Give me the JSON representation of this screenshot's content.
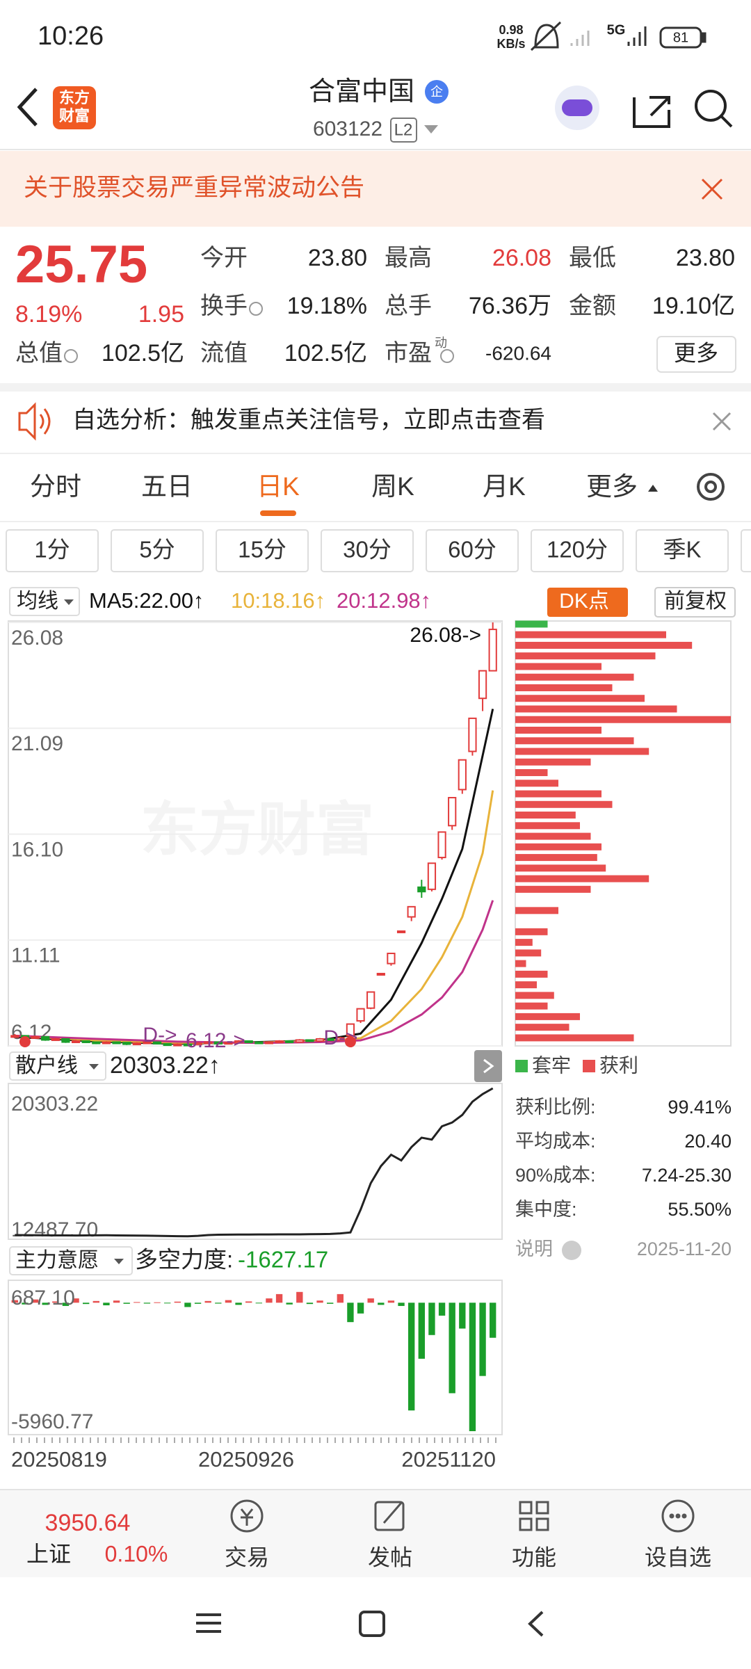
{
  "status_bar": {
    "time": "10:26",
    "speed": "0.98",
    "speed_unit": "KB/s",
    "network": "5G",
    "battery": "81"
  },
  "header": {
    "logo": [
      "东方",
      "财富"
    ],
    "title": "合富中国",
    "badge": "企",
    "code": "603122",
    "level": "L2"
  },
  "banner": {
    "text": "关于股票交易严重异常波动公告"
  },
  "quote": {
    "price": "25.75",
    "change_pct": "8.19%",
    "change": "1.95",
    "fields": [
      {
        "label": "今开",
        "value": "23.80"
      },
      {
        "label": "最高",
        "value": "26.08",
        "color": "#e23b3b"
      },
      {
        "label": "最低",
        "value": "23.80"
      },
      {
        "label": "换手",
        "value": "19.18%",
        "info": true
      },
      {
        "label": "总手",
        "value": "76.36万"
      },
      {
        "label": "金额",
        "value": "19.10亿"
      },
      {
        "label": "总值",
        "value": "102.5亿",
        "info": true
      },
      {
        "label": "流值",
        "value": "102.5亿"
      },
      {
        "label": "市盈",
        "sup": "动",
        "value": "-620.64",
        "info": true
      }
    ],
    "more": "更多"
  },
  "notice": {
    "text": "自选分析：触发重点关注信号，立即点击查看"
  },
  "tabs": {
    "items": [
      "分时",
      "五日",
      "日K",
      "周K",
      "月K",
      "更多"
    ],
    "selected": 2
  },
  "periods": [
    "1分",
    "5分",
    "15分",
    "30分",
    "60分",
    "120分",
    "季K"
  ],
  "chart_data": [
    {
      "type": "candlestick",
      "indicator": "均线",
      "buttons": [
        "DK点",
        "前复权"
      ],
      "watermark": "东方财富",
      "ylim": [
        6.12,
        26.08
      ],
      "yticks": [
        26.08,
        21.09,
        {
          "value": 16.1,
          "label": "16.10"
        },
        11.11,
        6.12
      ],
      "grid": true,
      "up_color": "#e23b3b",
      "down_color": "#1a9e2a",
      "candles": [
        [
          6.55,
          6.68,
          6.5,
          6.6
        ],
        [
          6.6,
          6.62,
          6.45,
          6.5
        ],
        [
          6.5,
          6.6,
          6.46,
          6.55
        ],
        [
          6.55,
          6.56,
          6.36,
          6.4
        ],
        [
          6.4,
          6.5,
          6.36,
          6.45
        ],
        [
          6.45,
          6.46,
          6.26,
          6.3
        ],
        [
          6.3,
          6.4,
          6.27,
          6.35
        ],
        [
          6.35,
          6.37,
          6.26,
          6.3
        ],
        [
          6.3,
          6.33,
          6.2,
          6.25
        ],
        [
          6.25,
          6.34,
          6.22,
          6.3
        ],
        [
          6.3,
          6.33,
          6.24,
          6.28
        ],
        [
          6.28,
          6.3,
          6.16,
          6.2
        ],
        [
          6.2,
          6.29,
          6.18,
          6.25
        ],
        [
          6.25,
          6.34,
          6.22,
          6.3
        ],
        [
          6.3,
          6.31,
          6.19,
          6.22
        ],
        [
          6.22,
          6.24,
          6.12,
          6.15
        ],
        [
          6.15,
          6.24,
          6.12,
          6.2
        ],
        [
          6.2,
          6.23,
          6.14,
          6.18
        ],
        [
          6.18,
          6.29,
          6.16,
          6.25
        ],
        [
          6.25,
          6.34,
          6.22,
          6.3
        ],
        [
          6.3,
          6.32,
          6.19,
          6.22
        ],
        [
          6.22,
          6.31,
          6.2,
          6.28
        ],
        [
          6.28,
          6.39,
          6.26,
          6.35
        ],
        [
          6.35,
          6.37,
          6.27,
          6.3
        ],
        [
          6.3,
          6.32,
          6.21,
          6.25
        ],
        [
          6.25,
          6.34,
          6.23,
          6.3
        ],
        [
          6.3,
          6.39,
          6.28,
          6.35
        ],
        [
          6.35,
          6.37,
          6.27,
          6.3
        ],
        [
          6.3,
          6.44,
          6.28,
          6.4
        ],
        [
          6.4,
          6.42,
          6.31,
          6.35
        ],
        [
          6.35,
          6.49,
          6.33,
          6.45
        ],
        [
          6.45,
          6.47,
          6.36,
          6.4
        ],
        [
          6.4,
          6.55,
          6.38,
          6.5
        ],
        [
          6.6,
          7.15,
          6.55,
          7.15
        ],
        [
          7.3,
          7.87,
          7.2,
          7.87
        ],
        [
          7.9,
          8.66,
          7.85,
          8.66
        ],
        [
          9.53,
          9.53,
          9.53,
          9.53
        ],
        [
          10.0,
          10.48,
          9.9,
          10.48
        ],
        [
          11.53,
          11.53,
          11.53,
          11.53
        ],
        [
          12.2,
          12.68,
          12.0,
          12.68
        ],
        [
          13.6,
          13.95,
          13.1,
          13.39
        ],
        [
          13.5,
          14.73,
          13.4,
          14.73
        ],
        [
          15.0,
          16.2,
          14.9,
          16.2
        ],
        [
          16.5,
          17.82,
          16.3,
          17.82
        ],
        [
          18.2,
          19.6,
          18.0,
          19.6
        ],
        [
          20.0,
          21.56,
          19.8,
          21.56
        ],
        [
          22.5,
          23.8,
          21.9,
          23.8
        ],
        [
          23.8,
          26.08,
          23.8,
          25.75
        ]
      ],
      "ma": {
        "x": [
          0,
          8,
          16,
          24,
          30,
          34,
          37,
          40,
          42,
          44,
          46,
          47
        ],
        "series": [
          {
            "name": "MA5:22.00↑",
            "color": "#111111",
            "values": [
              6.55,
              6.33,
              6.22,
              6.3,
              6.38,
              6.7,
              8.3,
              10.97,
              13.05,
              15.4,
              19.8,
              22.0
            ]
          },
          {
            "name": "10:18.16↑",
            "color": "#e8b33a",
            "values": [
              6.6,
              6.38,
              6.26,
              6.28,
              6.35,
              6.48,
              7.3,
              8.8,
              10.3,
              12.2,
              15.2,
              18.16
            ]
          },
          {
            "name": "20:12.98↑",
            "color": "#c0338a",
            "values": [
              6.6,
              6.45,
              6.32,
              6.26,
              6.3,
              6.38,
              6.8,
              7.6,
              8.4,
              9.6,
              11.6,
              12.98
            ]
          }
        ]
      },
      "annotations": [
        "26.08->",
        "6.12->",
        "D->",
        "D->"
      ]
    },
    {
      "type": "barh",
      "xlim": [
        0,
        100
      ],
      "ylim": [
        6.12,
        26.08
      ],
      "prices": [
        6.5,
        7.0,
        7.5,
        8.0,
        8.5,
        9.0,
        9.5,
        10.0,
        10.5,
        11.0,
        11.5,
        12.0,
        12.5,
        13.0,
        13.5,
        14.0,
        14.5,
        15.0,
        15.5,
        16.0,
        16.5,
        17.0,
        17.5,
        18.0,
        18.5,
        19.0,
        19.5,
        20.0,
        20.5,
        21.0,
        21.5,
        22.0,
        22.5,
        23.0,
        23.5,
        24.0,
        24.5,
        25.0,
        25.5,
        26.0
      ],
      "series": [
        {
          "name": "套牢",
          "color": "#3bb54a",
          "values": [
            null,
            null,
            null,
            null,
            null,
            null,
            null,
            null,
            null,
            null,
            null,
            null,
            null,
            null,
            null,
            null,
            null,
            null,
            null,
            null,
            null,
            null,
            null,
            null,
            null,
            null,
            null,
            null,
            null,
            null,
            null,
            null,
            null,
            null,
            null,
            null,
            null,
            null,
            null,
            15
          ]
        },
        {
          "name": "获利",
          "color": "#e84f4f",
          "values": [
            55,
            25,
            30,
            15,
            18,
            10,
            15,
            5,
            12,
            8,
            15,
            0,
            20,
            0,
            35,
            62,
            42,
            38,
            40,
            35,
            30,
            28,
            45,
            40,
            20,
            15,
            35,
            62,
            55,
            40,
            100,
            75,
            60,
            45,
            55,
            40,
            65,
            82,
            70,
            null
          ]
        }
      ],
      "stats": [
        {
          "label": "获利比例:",
          "value": "99.41%"
        },
        {
          "label": "平均成本:",
          "value": "20.40"
        },
        {
          "label": "90%成本:",
          "value": "7.24-25.30"
        },
        {
          "label": "集中度:",
          "value": "55.50%"
        }
      ],
      "note": "说明",
      "date": "2025-11-20"
    },
    {
      "type": "line",
      "title": "散户线",
      "value_label": "20303.22↑",
      "color": "#222222",
      "ylim": [
        12487.7,
        20303.22
      ],
      "yticks": [
        20303.22,
        {
          "value": 12487.7,
          "label": "12487.70"
        }
      ],
      "values": [
        12560,
        12555,
        12550,
        12548,
        12545,
        12545,
        12540,
        12545,
        12548,
        12550,
        12545,
        12540,
        12535,
        12530,
        12520,
        12510,
        12500,
        12495,
        12520,
        12560,
        12580,
        12585,
        12590,
        12590,
        12595,
        12595,
        12600,
        12600,
        12600,
        12605,
        12610,
        12620,
        12650,
        12700,
        13900,
        15300,
        16200,
        16800,
        16500,
        17200,
        17700,
        17600,
        18300,
        18500,
        18900,
        19600,
        20000,
        20303.22
      ]
    },
    {
      "type": "bar",
      "title": "主力意愿",
      "indicator_label": "多空力度:",
      "indicator_value": "-1627.17",
      "ylim": [
        -5960.77,
        687.1
      ],
      "yticks": [
        {
          "value": 687.1,
          "label": "687.10"
        },
        -5960.77
      ],
      "up_color": "#e84f4f",
      "down_color": "#1a9e2a",
      "values": [
        120,
        -80,
        150,
        -100,
        60,
        -150,
        200,
        -60,
        80,
        -120,
        100,
        -50,
        30,
        -40,
        20,
        -30,
        50,
        -200,
        -50,
        80,
        -40,
        120,
        -100,
        60,
        -30,
        200,
        400,
        -80,
        500,
        -60,
        100,
        -50,
        400,
        -900,
        -500,
        200,
        -100,
        100,
        -150,
        -5000,
        -2600,
        -1500,
        -600,
        -4200,
        -1200,
        -5960.77,
        -3400,
        -1627.17
      ],
      "x_labels": [
        "20250819",
        "20250926",
        "20251120"
      ]
    }
  ],
  "bottom_nav": {
    "index": {
      "value": "3950.64",
      "name": "上证",
      "change": "0.10%"
    },
    "items": [
      "交易",
      "发帖",
      "功能",
      "设自选"
    ]
  }
}
